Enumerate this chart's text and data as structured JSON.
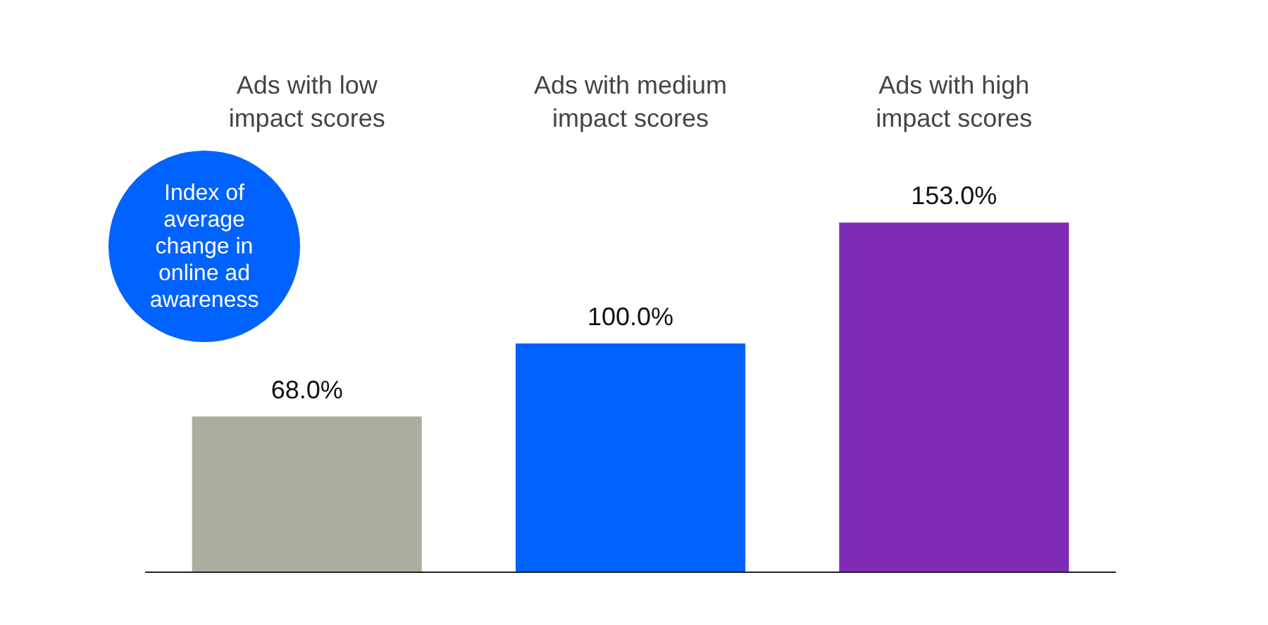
{
  "chart_data": {
    "type": "bar",
    "categories": [
      "Ads with low impact scores",
      "Ads with medium impact scores",
      "Ads with high impact scores"
    ],
    "values": [
      68.0,
      100.0,
      153.0
    ],
    "colors": [
      "#adad9f",
      "#0062ff",
      "#7e2bb5"
    ],
    "value_labels": [
      "68.0%",
      "100.0%",
      "153.0%"
    ],
    "annotations": [
      "Index of average change in online ad awareness"
    ],
    "tick_labels": "x",
    "grid": false,
    "legend": false
  }
}
